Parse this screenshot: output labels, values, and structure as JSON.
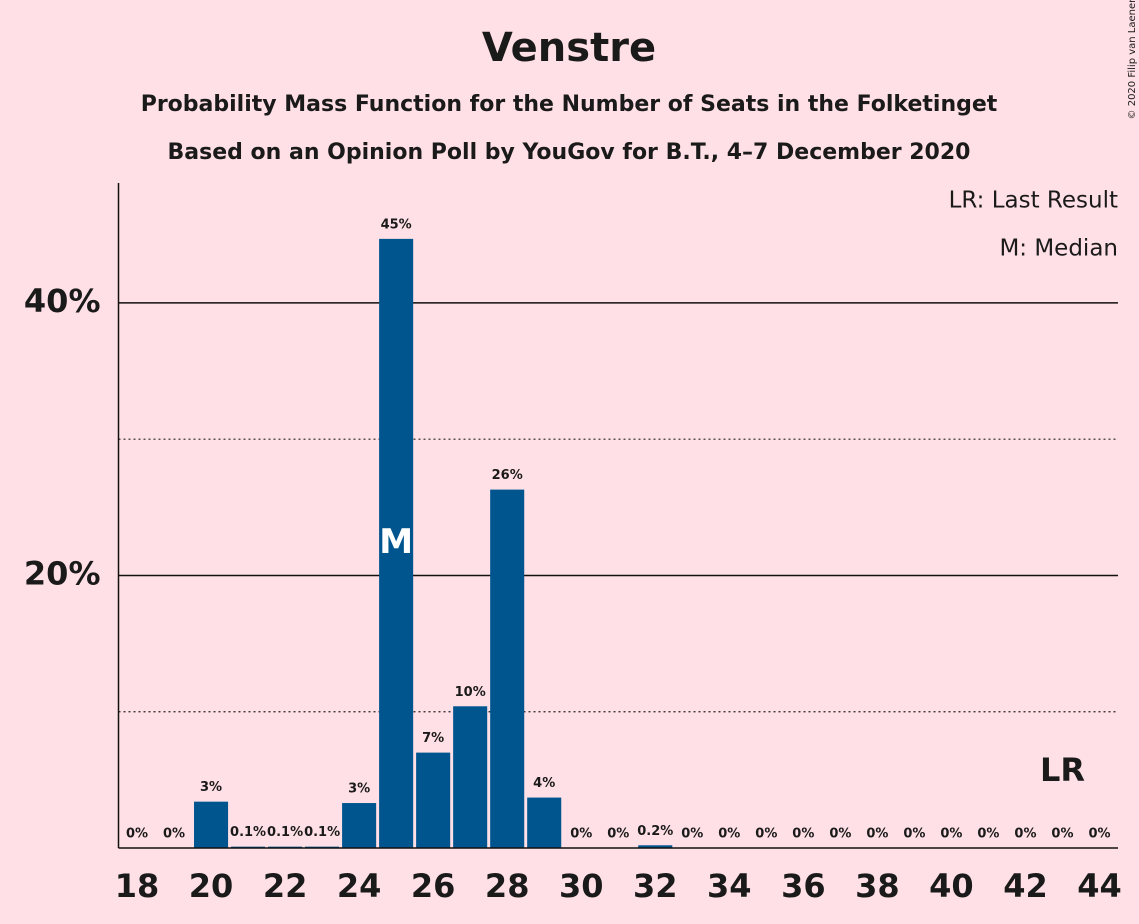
{
  "chart_data": {
    "type": "bar",
    "title": "Venstre",
    "subtitle": "Probability Mass Function for the Number of Seats in the Folketinget",
    "subtitle2": "Based on an Opinion Poll by YouGov for B.T., 4–7 December 2020",
    "copyright": "© 2020 Filip van Laenen",
    "legend": [
      "LR: Last Result",
      "M: Median"
    ],
    "x": [
      18,
      19,
      20,
      21,
      22,
      23,
      24,
      25,
      26,
      27,
      28,
      29,
      30,
      31,
      32,
      33,
      34,
      35,
      36,
      37,
      38,
      39,
      40,
      41,
      42,
      43,
      44
    ],
    "values": [
      0,
      0,
      3.4,
      0.1,
      0.1,
      0.1,
      3.3,
      44.7,
      7.0,
      10.4,
      26.3,
      3.7,
      0,
      0,
      0.2,
      0,
      0,
      0,
      0,
      0,
      0,
      0,
      0,
      0,
      0,
      0,
      0
    ],
    "value_labels": [
      "0%",
      "0%",
      "3%",
      "0.1%",
      "0.1%",
      "0.1%",
      "3%",
      "45%",
      "7%",
      "10%",
      "26%",
      "4%",
      "0%",
      "0%",
      "0.2%",
      "0%",
      "0%",
      "0%",
      "0%",
      "0%",
      "0%",
      "0%",
      "0%",
      "0%",
      "0%",
      "0%",
      "0%"
    ],
    "color": "#00558f",
    "xlim": [
      17.5,
      44.5
    ],
    "xticks": [
      18,
      20,
      22,
      24,
      26,
      28,
      30,
      32,
      34,
      36,
      38,
      40,
      42,
      44
    ],
    "ylim": [
      0,
      48.8
    ],
    "yticks": [
      {
        "value": 20,
        "label": "20%"
      },
      {
        "value": 40,
        "label": "40%"
      }
    ],
    "minor_yticks": [
      10,
      30
    ],
    "median": {
      "x": 25,
      "label": "M"
    },
    "last_result": {
      "x": 43,
      "label": "LR"
    }
  }
}
